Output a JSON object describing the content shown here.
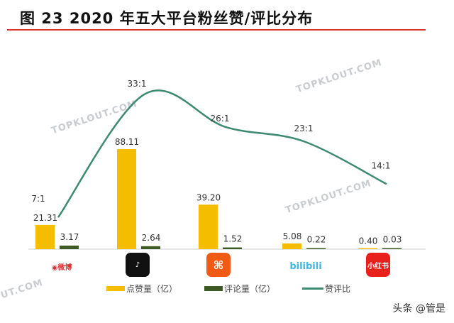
{
  "title": "图 23 2020 年五大平台粉丝赞/评比分布",
  "watermarks": [
    "TOPKLOUT.COM",
    "TOPKLOUT.COM",
    "TOPKLOUT.COM",
    "UT.COM"
  ],
  "credit": "头条 @管是",
  "colors": {
    "likes": "#f5bd00",
    "comments": "#3e5a24",
    "ratio": "#3d8a72",
    "rule": "#d9302c"
  },
  "chart_data": {
    "type": "bar",
    "title": "图 23 2020 年五大平台粉丝赞/评比分布",
    "categories": [
      "微博",
      "抖音",
      "快手",
      "bilibili",
      "小红书"
    ],
    "series": [
      {
        "name": "点赞量（亿）",
        "type": "bar",
        "values": [
          21.31,
          88.11,
          39.2,
          5.08,
          0.4
        ],
        "labels": [
          "21.31",
          "88.11",
          "39.20",
          "5.08",
          "0.40"
        ]
      },
      {
        "name": "评论量（亿）",
        "type": "bar",
        "values": [
          3.17,
          2.64,
          1.52,
          0.22,
          0.03
        ],
        "labels": [
          "3.17",
          "2.64",
          "1.52",
          "0.22",
          "0.03"
        ]
      },
      {
        "name": "赞评比",
        "type": "line",
        "values": [
          7,
          33,
          26,
          23,
          14
        ],
        "labels": [
          "7:1",
          "33:1",
          "26:1",
          "23:1",
          "14:1"
        ]
      }
    ],
    "legend_position": "bottom",
    "grid": false
  }
}
